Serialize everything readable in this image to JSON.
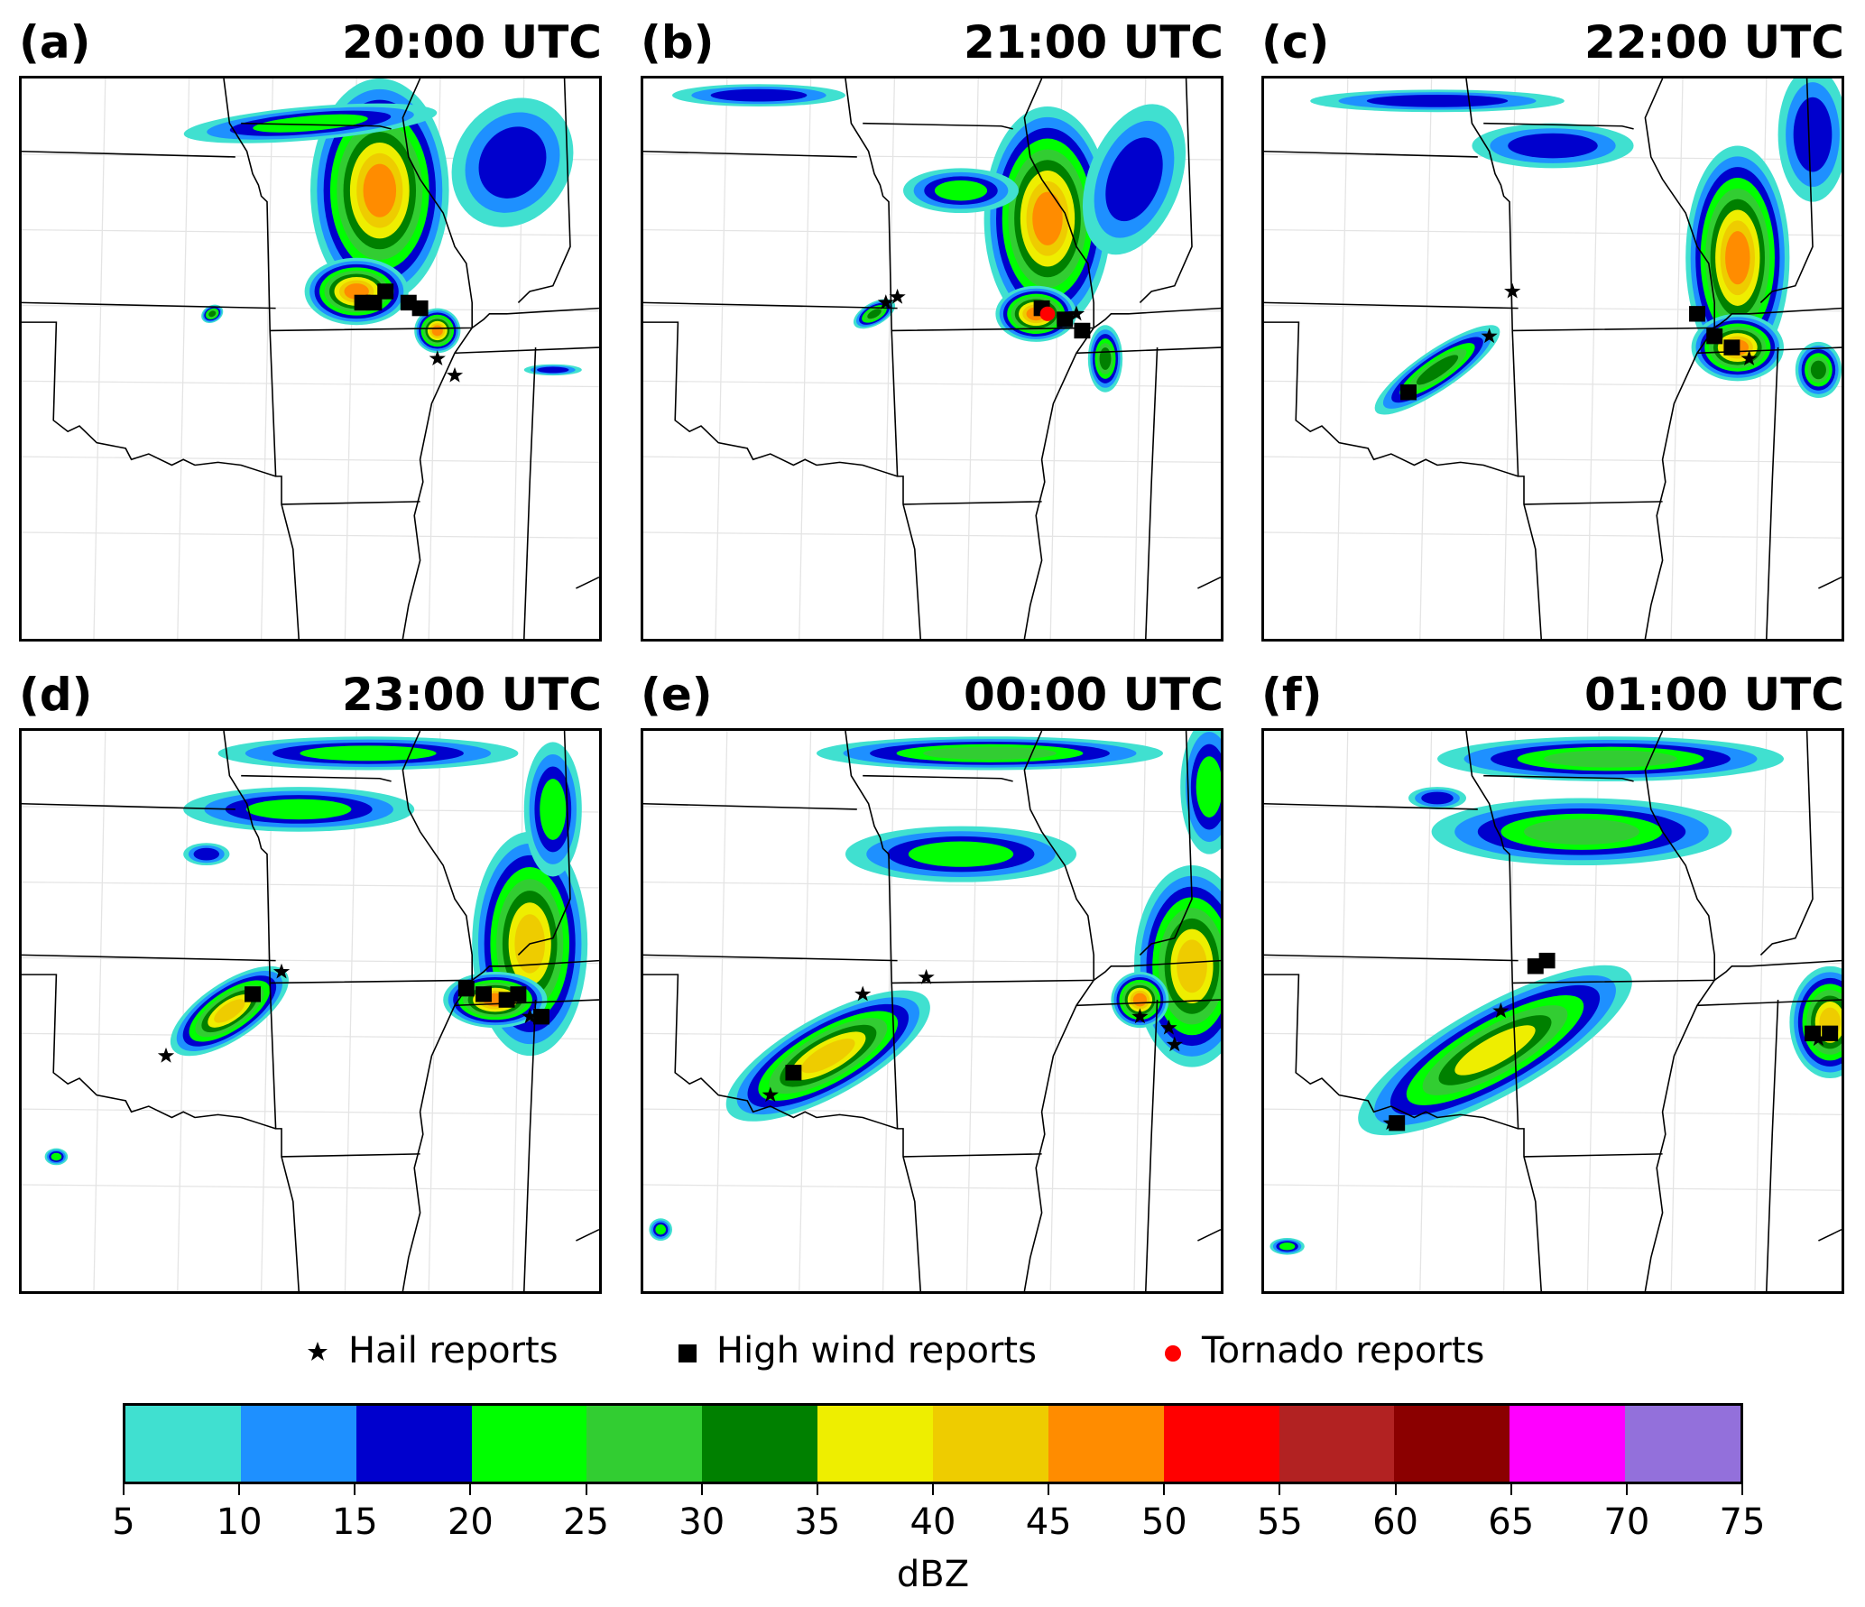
{
  "panels": [
    {
      "label": "(a)",
      "time": "20:00 UTC"
    },
    {
      "label": "(b)",
      "time": "21:00 UTC"
    },
    {
      "label": "(c)",
      "time": "22:00 UTC"
    },
    {
      "label": "(d)",
      "time": "23:00 UTC"
    },
    {
      "label": "(e)",
      "time": "00:00 UTC"
    },
    {
      "label": "(f)",
      "time": "01:00 UTC"
    }
  ],
  "legend": {
    "hail": {
      "label": "Hail reports",
      "icon": "star",
      "color": "#000000"
    },
    "wind": {
      "label": "High wind reports",
      "icon": "square",
      "color": "#000000"
    },
    "tornado": {
      "label": "Tornado reports",
      "icon": "circle",
      "color": "#ff0000"
    }
  },
  "colorbar": {
    "label": "dBZ",
    "ticks": [
      "5",
      "10",
      "15",
      "20",
      "25",
      "30",
      "35",
      "40",
      "45",
      "50",
      "55",
      "60",
      "65",
      "70",
      "75"
    ],
    "colors": [
      "#40e0d0",
      "#1e90ff",
      "#0000cd",
      "#00ff00",
      "#32cd32",
      "#008000",
      "#eeee00",
      "#eecc00",
      "#ff8c00",
      "#ff0000",
      "#b22222",
      "#8b0000",
      "#ff00ff",
      "#9370db"
    ]
  }
}
